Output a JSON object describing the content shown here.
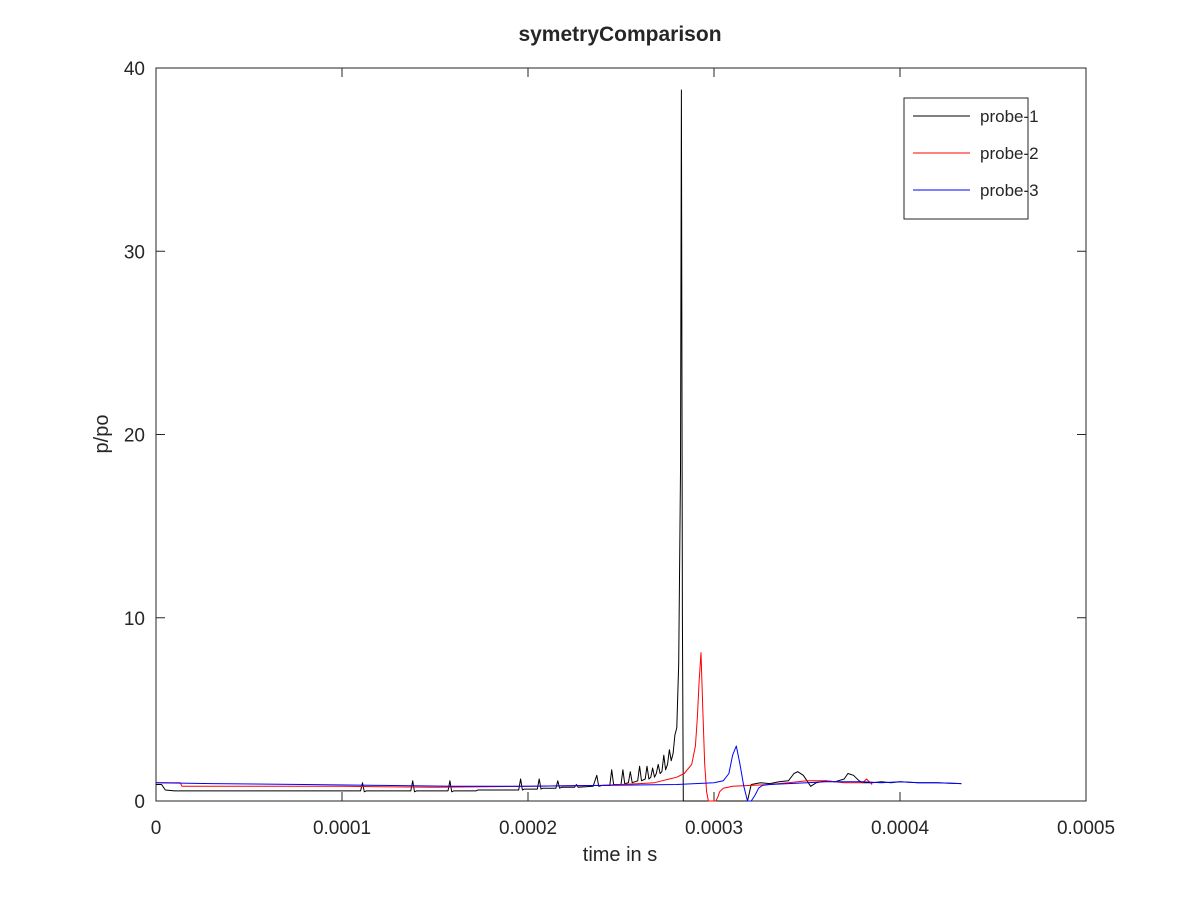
{
  "chart_data": {
    "type": "line",
    "title": "symetryComparison",
    "xlabel": "time in s",
    "ylabel": "p/po",
    "xlim": [
      0,
      0.0005
    ],
    "ylim": [
      0,
      40
    ],
    "xticks": [
      0,
      0.0001,
      0.0002,
      0.0003,
      0.0004,
      0.0005
    ],
    "xtick_labels": [
      "0",
      "0.0001",
      "0.0002",
      "0.0003",
      "0.0004",
      "0.0005"
    ],
    "yticks": [
      0,
      10,
      20,
      30,
      40
    ],
    "ytick_labels": [
      "0",
      "10",
      "20",
      "30",
      "40"
    ],
    "grid": false,
    "legend_position": "top-right",
    "series": [
      {
        "name": "probe-1",
        "color": "#000000",
        "x": [
          0,
          3e-06,
          5e-06,
          1e-05,
          6e-05,
          0.00011,
          0.000111,
          0.000112,
          0.000113,
          0.000137,
          0.000138,
          0.000139,
          0.00014,
          0.000157,
          0.000158,
          0.000159,
          0.00016,
          0.000172,
          0.000173,
          0.000174,
          0.000175,
          0.000195,
          0.000196,
          0.000197,
          0.000198,
          0.000205,
          0.000206,
          0.000207,
          0.000208,
          0.000215,
          0.000216,
          0.000217,
          0.000218,
          0.000225,
          0.000226,
          0.000227,
          0.000235,
          0.000237,
          0.000238,
          0.00024,
          0.000244,
          0.000245,
          0.000246,
          0.00025,
          0.000251,
          0.000252,
          0.000254,
          0.000255,
          0.000256,
          0.000259,
          0.00026,
          0.000261,
          0.000263,
          0.000264,
          0.000265,
          0.000266,
          0.000267,
          0.000268,
          0.000269,
          0.00027,
          0.000271,
          0.000272,
          0.000273,
          0.000274,
          0.000275,
          0.000276,
          0.000277,
          0.000278,
          0.000279,
          0.00028,
          0.000281,
          0.000282,
          0.0002825,
          0.000283,
          0.0002835,
          0.000284,
          0.000285,
          0.00029,
          0.000295,
          0.000296,
          0.0003,
          0.000305,
          0.00031,
          0.000315,
          0.000318,
          0.00032,
          0.000325,
          0.00033,
          0.000335,
          0.00034,
          0.000343,
          0.000345,
          0.000348,
          0.00035,
          0.000352,
          0.000355,
          0.00036,
          0.000365,
          0.00037,
          0.000372,
          0.000375,
          0.000378,
          0.00038,
          0.000385,
          0.00039,
          0.000395,
          0.0004,
          0.00041,
          0.00042,
          0.000433
        ],
        "values": [
          0.9,
          0.9,
          0.6,
          0.55,
          0.55,
          0.55,
          1.0,
          0.5,
          0.55,
          0.55,
          1.1,
          0.5,
          0.55,
          0.55,
          1.1,
          0.5,
          0.55,
          0.55,
          0.6,
          0.6,
          0.6,
          0.6,
          1.2,
          0.6,
          0.65,
          0.65,
          1.2,
          0.65,
          0.7,
          0.7,
          1.1,
          0.7,
          0.75,
          0.75,
          0.9,
          0.75,
          0.8,
          1.4,
          0.8,
          0.85,
          0.85,
          1.7,
          0.9,
          0.9,
          1.7,
          0.95,
          1.0,
          1.6,
          1.0,
          1.1,
          1.9,
          1.1,
          1.2,
          1.9,
          1.2,
          1.3,
          1.8,
          1.3,
          1.5,
          2.0,
          1.5,
          1.6,
          2.5,
          1.7,
          2.0,
          2.8,
          2.2,
          2.6,
          3.6,
          4.0,
          7.5,
          18.0,
          38.8,
          10.0,
          0.0,
          0.0,
          0.0,
          0.0,
          0.0,
          0.0,
          0.0,
          0.0,
          0.0,
          0.0,
          0.0,
          0.9,
          1.0,
          0.95,
          1.05,
          1.1,
          1.5,
          1.6,
          1.4,
          1.1,
          0.8,
          1.0,
          1.1,
          1.05,
          1.2,
          1.5,
          1.4,
          1.1,
          1.0,
          1.0,
          1.05,
          1.0,
          1.05,
          1.0,
          1.0,
          0.95
        ]
      },
      {
        "name": "probe-2",
        "color": "#ff0000",
        "x": [
          0,
          1.3e-05,
          1.4e-05,
          5e-05,
          0.0001,
          0.00015,
          0.0002,
          0.00024,
          0.00026,
          0.000268,
          0.000272,
          0.000276,
          0.00028,
          0.000284,
          0.000288,
          0.00029,
          0.000291,
          0.000292,
          0.000293,
          0.000294,
          0.000295,
          0.000296,
          0.000297,
          0.000298,
          0.000299,
          0.0003,
          0.000301,
          0.000302,
          0.000303,
          0.000305,
          0.00031,
          0.00032,
          0.00033,
          0.00034,
          0.00035,
          0.00036,
          0.00037,
          0.000375,
          0.00038,
          0.000382,
          0.000385
        ],
        "values": [
          1.0,
          1.0,
          0.8,
          0.8,
          0.8,
          0.75,
          0.8,
          0.85,
          0.95,
          1.0,
          1.1,
          1.2,
          1.3,
          1.5,
          2.0,
          3.0,
          4.5,
          6.5,
          8.1,
          5.0,
          2.0,
          0.5,
          0.0,
          0.0,
          0.0,
          0.0,
          0.0,
          0.2,
          0.5,
          0.7,
          0.8,
          0.85,
          0.9,
          1.0,
          1.1,
          1.1,
          1.0,
          1.0,
          1.0,
          1.2,
          0.9
        ]
      },
      {
        "name": "probe-3",
        "color": "#0000ff",
        "x": [
          0,
          3e-05,
          8e-05,
          0.00012,
          0.00016,
          0.0002,
          0.00024,
          0.00028,
          0.0003,
          0.000305,
          0.000308,
          0.00031,
          0.000312,
          0.000314,
          0.000316,
          0.000318,
          0.00032,
          0.000322,
          0.000324,
          0.000326,
          0.00033,
          0.00034,
          0.00035,
          0.00036,
          0.00037,
          0.00038,
          0.00039,
          0.0004,
          0.00041,
          0.00042,
          0.000433
        ],
        "values": [
          1.0,
          0.95,
          0.9,
          0.85,
          0.8,
          0.8,
          0.85,
          0.9,
          1.0,
          1.1,
          1.5,
          2.5,
          3.0,
          2.0,
          0.8,
          0.0,
          0.0,
          0.3,
          0.7,
          0.85,
          0.9,
          0.95,
          1.0,
          1.05,
          1.05,
          1.05,
          1.0,
          1.05,
          1.0,
          1.0,
          0.95
        ]
      }
    ]
  }
}
